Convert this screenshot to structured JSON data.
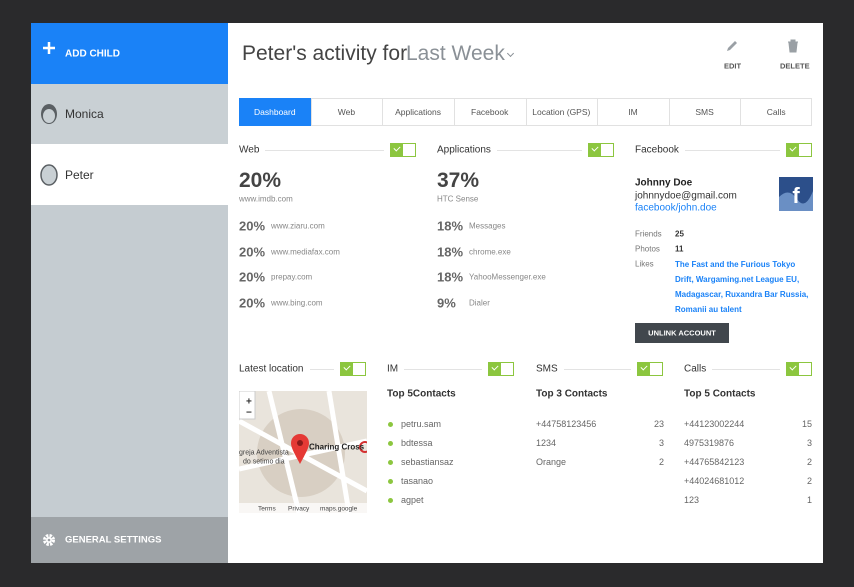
{
  "sidebar": {
    "add_child": "ADD Child",
    "children": [
      "Monica",
      "Peter"
    ],
    "settings": "GENERAL SETTINGS"
  },
  "header": {
    "title": "Peter's activity for",
    "period": "Last Week",
    "actions": [
      "EDIT",
      "DELETE"
    ]
  },
  "tabs": [
    "Dashboard",
    "Web",
    "Applications",
    "Facebook",
    "Location (GPS)",
    "IM",
    "SMS",
    "Calls"
  ],
  "web": {
    "title": "Web",
    "top_value": "20%",
    "top_label": "www.imdb.com",
    "items": [
      {
        "value": "20%",
        "label": "www.ziaru.com"
      },
      {
        "value": "20%",
        "label": "www.mediafax.com"
      },
      {
        "value": "20%",
        "label": "prepay.com"
      },
      {
        "value": "20%",
        "label": "www.bing.com"
      }
    ]
  },
  "applications": {
    "title": "Applications",
    "top_value": "37%",
    "top_label": "HTC Sense",
    "items": [
      {
        "value": "18%",
        "label": "Messages"
      },
      {
        "value": "18%",
        "label": "chrome.exe"
      },
      {
        "value": "18%",
        "label": "YahooMessenger.exe"
      },
      {
        "value": "9%",
        "label": "Dialer"
      }
    ]
  },
  "facebook": {
    "title": "Facebook",
    "name": "Johnny Doe",
    "email": "johnnydoe@gmail.com",
    "link": "facebook/john.doe",
    "stats": [
      {
        "label": "Friends",
        "value": "25"
      },
      {
        "label": "Photos",
        "value": "11"
      }
    ],
    "likes_label": "Likes",
    "likes": "The Fast and the Furious Tokyo Drift, Wargaming.net League EU, Madagascar, Ruxandra Bar Russia, Romanii au talent",
    "button": "UNLINK ACCOUNT"
  },
  "location": {
    "title": "Latest location",
    "map": {
      "zoom_in": "+",
      "zoom_out": "−",
      "place": "Charing Cross",
      "poi_line1": "greja Adventista",
      "poi_line2": "do setimo dia",
      "footer": [
        "Terms",
        "Privacy",
        "maps.google"
      ]
    }
  },
  "im": {
    "title": "IM",
    "subtitle": "Top 5Contacts",
    "contacts": [
      "petru.sam",
      "bdtessa",
      "sebastiansaz",
      "tasanao",
      "agpet"
    ]
  },
  "sms": {
    "title": "SMS",
    "subtitle": "Top 3 Contacts",
    "rows": [
      {
        "contact": "+44758123456",
        "count": "23"
      },
      {
        "contact": "1234",
        "count": "3"
      },
      {
        "contact": "Orange",
        "count": "2"
      }
    ]
  },
  "calls": {
    "title": "Calls",
    "subtitle": "Top 5 Contacts",
    "rows": [
      {
        "contact": "+44123002244",
        "count": "15"
      },
      {
        "contact": "4975319876",
        "count": "3"
      },
      {
        "contact": "+44765842123",
        "count": "2"
      },
      {
        "contact": "+44024681012",
        "count": "2"
      },
      {
        "contact": "123",
        "count": "1"
      }
    ]
  }
}
